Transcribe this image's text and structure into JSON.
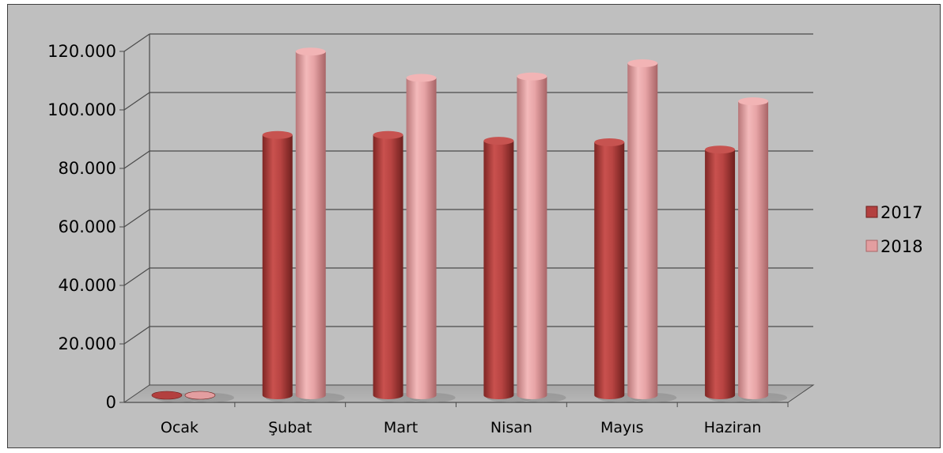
{
  "chart_data": {
    "type": "bar",
    "style": "3d-cylinder",
    "categories": [
      "Ocak",
      "Şubat",
      "Mart",
      "Nisan",
      "Mayıs",
      "Haziran"
    ],
    "series": [
      {
        "name": "2017",
        "values": [
          0,
          89000,
          89000,
          87000,
          86500,
          84000
        ],
        "color": "#b3403f"
      },
      {
        "name": "2018",
        "values": [
          0,
          117500,
          108500,
          109000,
          113500,
          100500
        ],
        "color": "#e39ea0"
      }
    ],
    "y_ticks": [
      "0",
      "20.000",
      "40.000",
      "60.000",
      "80.000",
      "100.000",
      "120.000"
    ],
    "ylim": [
      0,
      120000
    ],
    "grid": true,
    "legend_position": "right",
    "background": "#bfbfbf"
  }
}
